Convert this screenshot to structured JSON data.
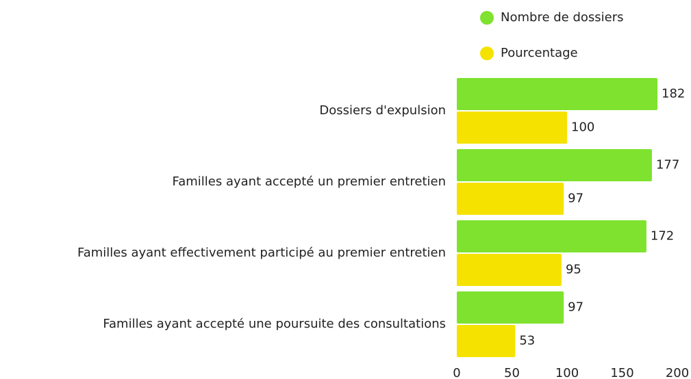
{
  "chart_data": {
    "type": "bar",
    "orientation": "horizontal",
    "categories": [
      "Dossiers d'expulsion",
      "Familles ayant accepté un premier entretien",
      "Familles ayant effectivement participé au premier entretien",
      "Familles ayant accepté une poursuite des consultations"
    ],
    "series": [
      {
        "name": "Nombre de dossiers",
        "color": "#7ee22f",
        "values": [
          182,
          177,
          172,
          97
        ]
      },
      {
        "name": "Pourcentage",
        "color": "#f5e200",
        "values": [
          100,
          97,
          95,
          53
        ]
      }
    ],
    "xlim": [
      0,
      200
    ],
    "xticks": [
      0,
      50,
      100,
      150,
      200
    ],
    "grid": false,
    "legend": "top-right"
  }
}
